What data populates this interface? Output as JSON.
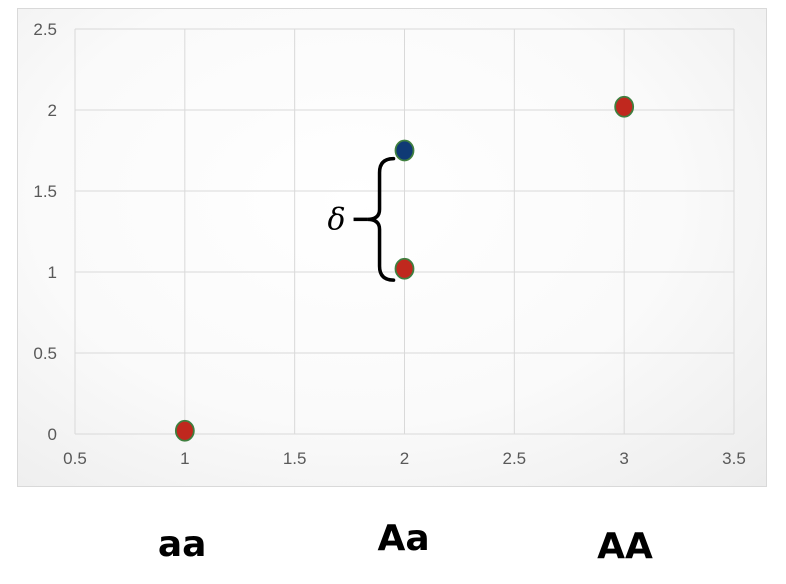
{
  "chart_data": {
    "type": "scatter",
    "title": "",
    "xlabel": "",
    "ylabel": "",
    "xlim": [
      0.5,
      3.5
    ],
    "ylim": [
      0,
      2.5
    ],
    "x_ticks": [
      "0.5",
      "1",
      "1.5",
      "2",
      "2.5",
      "3",
      "3.5"
    ],
    "y_ticks": [
      "0",
      "0.5",
      "1",
      "1.5",
      "2",
      "2.5"
    ],
    "grid": true,
    "series": [
      {
        "color": "#c0281e",
        "points": [
          {
            "x": 1,
            "y": 0.02
          },
          {
            "x": 2,
            "y": 1.02
          },
          {
            "x": 3,
            "y": 2.02
          }
        ]
      },
      {
        "color": "#0f3a75",
        "points": [
          {
            "x": 2,
            "y": 1.75
          }
        ]
      }
    ],
    "annotations": [
      {
        "type": "brace",
        "label": "δ",
        "x": 1.85,
        "y_from": 0.95,
        "y_to": 1.7
      }
    ],
    "genotype_labels": [
      {
        "label": "aa",
        "x": 1
      },
      {
        "label": "Aa",
        "x": 2
      },
      {
        "label": "AA",
        "x": 3
      }
    ]
  },
  "colors": {
    "grid": "#d9d9d9",
    "tick_text": "#595959",
    "marker_outline": "#3f7f3f"
  }
}
